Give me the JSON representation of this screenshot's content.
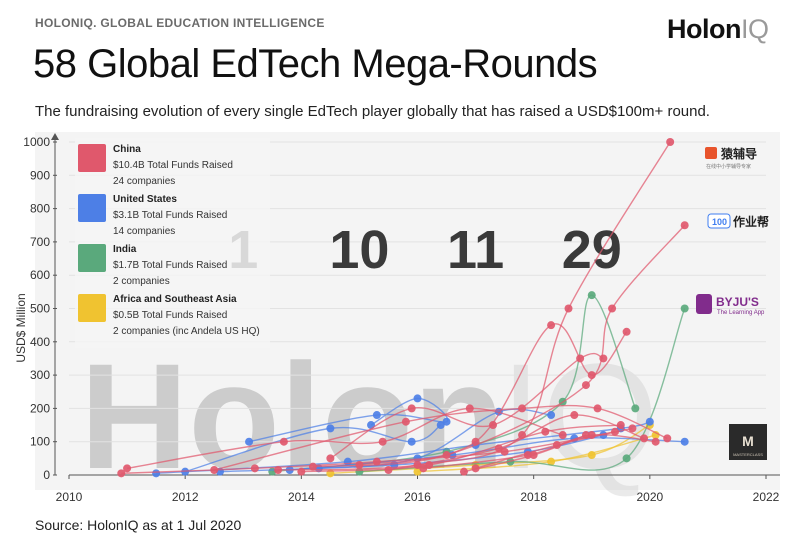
{
  "header": {
    "kicker": "HOLONIQ. GLOBAL EDUCATION INTELLIGENCE",
    "logo_main": "Holon",
    "logo_suffix": "IQ",
    "title": "58 Global EdTech Mega-Rounds",
    "subtitle": "The fundraising evolution of every single EdTech player globally that has raised a USD$100m+ round."
  },
  "footer": {
    "source": "Source: HolonIQ as at 1 Jul 2020"
  },
  "brands": {
    "yuanfudao": "猿辅导",
    "yuanfudao_sub": "在线中小学辅导专家",
    "zuoyebang": "作业帮",
    "zuoyebang_badge": "100",
    "byjus": "BYJU'S",
    "byjus_sub": "The Learning App",
    "masterclass_mark": "M",
    "masterclass": "MASTERCLASS"
  },
  "watermark": {
    "main": "Holon",
    "suffix": "IQ"
  },
  "colors": {
    "china": "#e0586c",
    "us": "#4d7fe6",
    "india": "#5aa97c",
    "africa": "#f0c330"
  },
  "chart_data": {
    "type": "line",
    "title": "58 Global EdTech Mega-Rounds",
    "xlabel": "",
    "ylabel": "USD$ Million",
    "xlim": [
      2010,
      2022
    ],
    "ylim": [
      0,
      1000
    ],
    "x_ticks": [
      "2010",
      "2012",
      "2014",
      "2016",
      "2018",
      "2020",
      "2022"
    ],
    "y_ticks": [
      "0",
      "100",
      "200",
      "300",
      "400",
      "500",
      "600",
      "700",
      "800",
      "900",
      "1000"
    ],
    "legend": [
      {
        "region": "China",
        "total": "$10.4B Total Funds Raised",
        "companies": "24 companies"
      },
      {
        "region": "United States",
        "total": "$3.1B Total Funds Raised",
        "companies": "14 companies"
      },
      {
        "region": "India",
        "total": "$1.7B Total Funds Raised",
        "companies": "2 companies"
      },
      {
        "region": "Africa and Southeast Asia",
        "total": "$0.5B Total Funds Raised",
        "companies": "2 companies (inc Andela US HQ)"
      }
    ],
    "mega_round_counts": [
      {
        "label": "1",
        "year": 2013
      },
      {
        "label": "10",
        "year": 2015
      },
      {
        "label": "11",
        "year": 2017
      },
      {
        "label": "29",
        "year": 2019
      }
    ],
    "series": [
      {
        "region": "china",
        "points": [
          [
            2013.6,
            15
          ],
          [
            2016.0,
            30
          ],
          [
            2017.8,
            120
          ],
          [
            2018.6,
            500
          ],
          [
            2020.35,
            1000
          ]
        ]
      },
      {
        "region": "china",
        "points": [
          [
            2014.2,
            25
          ],
          [
            2016.5,
            60
          ],
          [
            2018.9,
            270
          ],
          [
            2019.35,
            500
          ],
          [
            2020.6,
            750
          ]
        ]
      },
      {
        "region": "china",
        "points": [
          [
            2015.0,
            30
          ],
          [
            2017.0,
            100
          ],
          [
            2018.3,
            450
          ],
          [
            2019.0,
            300
          ],
          [
            2019.6,
            430
          ]
        ]
      },
      {
        "region": "china",
        "points": [
          [
            2014.5,
            50
          ],
          [
            2015.9,
            200
          ],
          [
            2017.3,
            150
          ],
          [
            2018.8,
            350
          ],
          [
            2019.2,
            350
          ]
        ]
      },
      {
        "region": "china",
        "points": [
          [
            2011.0,
            20
          ],
          [
            2013.7,
            100
          ],
          [
            2015.4,
            100
          ],
          [
            2016.9,
            200
          ],
          [
            2018.5,
            120
          ]
        ]
      },
      {
        "region": "china",
        "points": [
          [
            2012.5,
            15
          ],
          [
            2015.8,
            160
          ],
          [
            2017.8,
            200
          ],
          [
            2019.1,
            200
          ],
          [
            2020.3,
            110
          ]
        ]
      },
      {
        "region": "china",
        "points": [
          [
            2014.0,
            10
          ],
          [
            2016.2,
            30
          ],
          [
            2018.2,
            130
          ],
          [
            2019.5,
            150
          ]
        ]
      },
      {
        "region": "china",
        "points": [
          [
            2015.5,
            15
          ],
          [
            2017.4,
            80
          ],
          [
            2018.7,
            180
          ],
          [
            2019.9,
            110
          ]
        ]
      },
      {
        "region": "china",
        "points": [
          [
            2016.1,
            20
          ],
          [
            2017.9,
            60
          ],
          [
            2019.0,
            120
          ],
          [
            2020.1,
            100
          ]
        ]
      },
      {
        "region": "china",
        "points": [
          [
            2010.9,
            5
          ],
          [
            2013.2,
            20
          ],
          [
            2015.3,
            40
          ],
          [
            2017.5,
            70
          ],
          [
            2019.4,
            130
          ]
        ]
      },
      {
        "region": "china",
        "points": [
          [
            2017.0,
            20
          ],
          [
            2018.4,
            90
          ],
          [
            2019.7,
            140
          ]
        ]
      },
      {
        "region": "china",
        "points": [
          [
            2016.8,
            10
          ],
          [
            2018.0,
            60
          ],
          [
            2018.9,
            120
          ]
        ]
      },
      {
        "region": "us",
        "points": [
          [
            2013.1,
            100
          ],
          [
            2015.3,
            180
          ],
          [
            2016.5,
            160
          ],
          [
            2016.0,
            230
          ],
          [
            2015.2,
            150
          ]
        ]
      },
      {
        "region": "us",
        "points": [
          [
            2012.0,
            10
          ],
          [
            2014.5,
            140
          ],
          [
            2015.9,
            100
          ],
          [
            2016.4,
            150
          ]
        ]
      },
      {
        "region": "us",
        "points": [
          [
            2014.3,
            20
          ],
          [
            2016.0,
            50
          ],
          [
            2017.4,
            190
          ],
          [
            2018.3,
            180
          ]
        ]
      },
      {
        "region": "us",
        "points": [
          [
            2013.8,
            15
          ],
          [
            2016.6,
            60
          ],
          [
            2018.7,
            110
          ],
          [
            2020.6,
            100
          ]
        ]
      },
      {
        "region": "us",
        "points": [
          [
            2011.5,
            5
          ],
          [
            2014.8,
            40
          ],
          [
            2017.0,
            90
          ],
          [
            2019.5,
            140
          ],
          [
            2020.0,
            160
          ]
        ]
      },
      {
        "region": "us",
        "points": [
          [
            2012.6,
            10
          ],
          [
            2015.6,
            30
          ],
          [
            2017.9,
            70
          ],
          [
            2019.2,
            120
          ]
        ]
      },
      {
        "region": "india",
        "points": [
          [
            2013.5,
            10
          ],
          [
            2016.5,
            70
          ],
          [
            2018.5,
            220
          ],
          [
            2019.0,
            540
          ],
          [
            2019.75,
            200
          ]
        ]
      },
      {
        "region": "india",
        "points": [
          [
            2015.0,
            10
          ],
          [
            2017.6,
            40
          ],
          [
            2019.6,
            50
          ],
          [
            2020.6,
            500
          ]
        ]
      },
      {
        "region": "africa",
        "points": [
          [
            2014.5,
            5
          ],
          [
            2017.0,
            30
          ],
          [
            2019.0,
            60
          ],
          [
            2020.0,
            150
          ]
        ]
      },
      {
        "region": "africa",
        "points": [
          [
            2016.0,
            10
          ],
          [
            2018.3,
            40
          ],
          [
            2020.1,
            120
          ]
        ]
      }
    ]
  }
}
